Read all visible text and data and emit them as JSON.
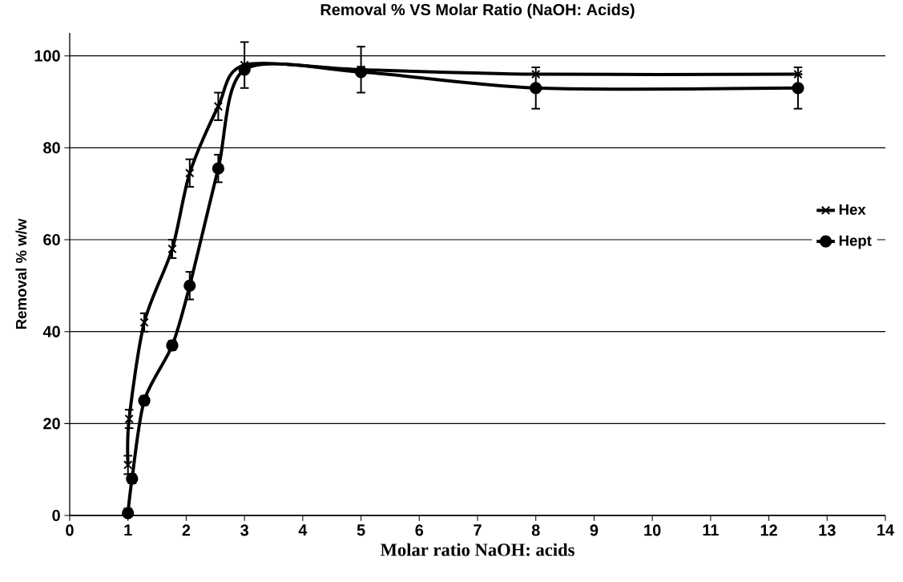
{
  "chart_data": {
    "type": "line",
    "title": "Removal % VS Molar Ratio (NaOH: Acids)",
    "xlabel": "Molar ratio NaOH: acids",
    "ylabel": "Removal % w/w",
    "xlim": [
      0,
      14
    ],
    "ylim": [
      0,
      105
    ],
    "xticks": [
      0,
      1,
      2,
      3,
      4,
      5,
      6,
      7,
      8,
      9,
      10,
      11,
      12,
      13,
      14
    ],
    "yticks": [
      0,
      20,
      40,
      60,
      80,
      100
    ],
    "grid": "y",
    "legend": "right",
    "line_style": "solid",
    "series": [
      {
        "name": "Hex",
        "color": "#000000",
        "marker": "cross",
        "x": [
          1,
          1.02,
          1.28,
          1.76,
          2.06,
          2.55,
          3,
          5,
          8,
          12.5
        ],
        "values": [
          11,
          21,
          42,
          58,
          74.5,
          89,
          98,
          97,
          96,
          96
        ],
        "errors": [
          2,
          2,
          2,
          2,
          3,
          3,
          5,
          5,
          null,
          null
        ]
      },
      {
        "name": "Hept",
        "color": "#000000",
        "marker": "circle",
        "x": [
          1,
          1.07,
          1.28,
          1.76,
          2.06,
          2.55,
          3,
          5,
          8,
          12.5
        ],
        "values": [
          0.5,
          8,
          25,
          37,
          50,
          75.5,
          97,
          96.5,
          93,
          93
        ],
        "errors": [
          1,
          1,
          1,
          1,
          3,
          3,
          null,
          null,
          4.5,
          4.5
        ]
      }
    ]
  }
}
